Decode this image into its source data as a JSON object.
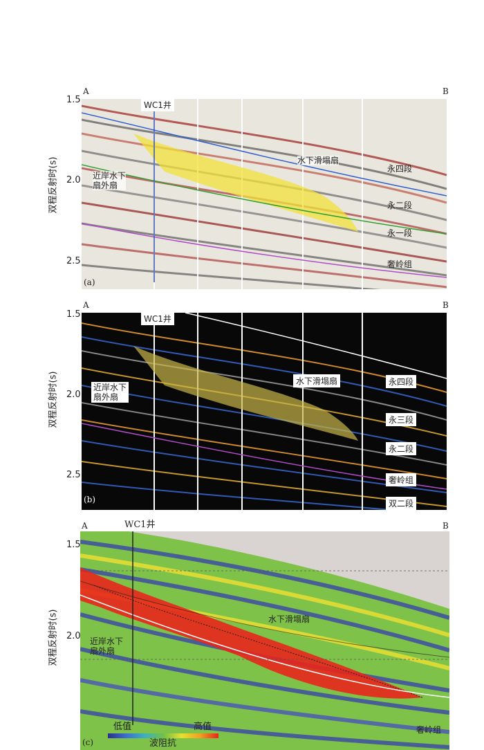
{
  "panel_a": {
    "end_left": "A",
    "end_right": "B",
    "well": "WC1井",
    "tag": "(a)",
    "ylabel": "双程反射时(s)",
    "ticks": [
      "1.5",
      "2.0",
      "2.5"
    ],
    "fan_near": [
      "近岸水下",
      "扇外扇"
    ],
    "fan_slump": "水下滑塌扇",
    "units": [
      "永四段",
      "永二段",
      "永一段",
      "奢岭组"
    ]
  },
  "panel_b": {
    "end_left": "A",
    "end_right": "B",
    "well": "WC1井",
    "tag": "(b)",
    "ylabel": "双程反射时(s)",
    "ticks": [
      "1.5",
      "2.0",
      "2.5"
    ],
    "fan_near": [
      "近岸水下",
      "扇外扇"
    ],
    "fan_slump": "水下滑塌扇",
    "units": [
      "永四段",
      "永三段",
      "永二段",
      "奢岭组",
      "双二段"
    ]
  },
  "panel_c": {
    "end_left": "A",
    "end_right": "B",
    "well": "WC1井",
    "tag": "(c)",
    "ylabel": "双程反射时(s)",
    "ticks": [
      "1.5",
      "2.0"
    ],
    "fan_near": [
      "近岸水下",
      "扇外扇"
    ],
    "fan_slump": "水下滑塌扇",
    "unit": "奢岭组",
    "colorbar_low": "低值",
    "colorbar_high": "高值",
    "colorbar_title": "波阻抗"
  },
  "colors": {
    "fan_yellow": "#f2e23a",
    "impedance_high": "#e8261c",
    "impedance_low": "#2b2f8f"
  }
}
